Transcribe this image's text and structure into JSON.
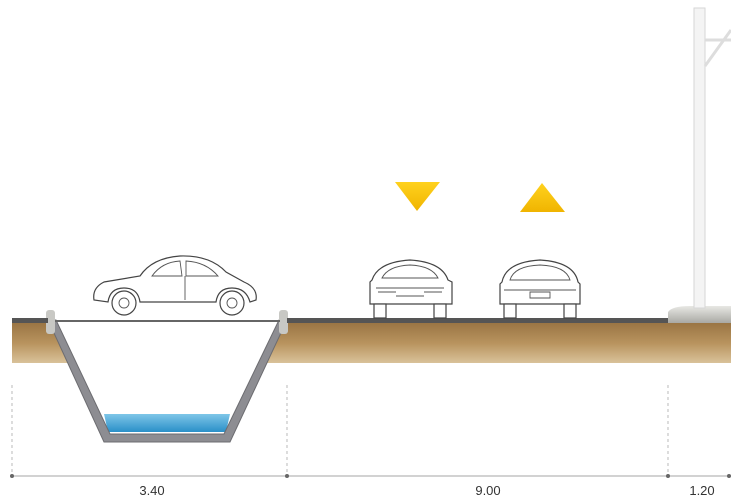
{
  "dimensions": [
    "3.40",
    "9.00",
    "1.20"
  ]
}
